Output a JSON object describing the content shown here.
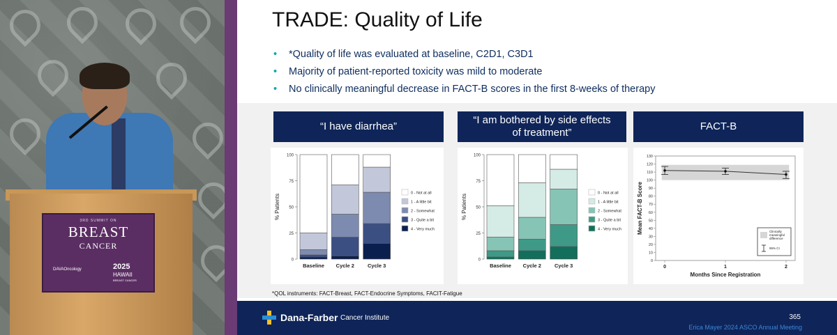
{
  "podium_sign": {
    "small": "3RD SUMMIT ON",
    "line1": "BREAST",
    "line2": "CANCER",
    "sponsor": "DAVAOncology",
    "year": "2025",
    "place": "HAWAII",
    "tag": "BREAST CANCER"
  },
  "slide": {
    "title": "TRADE: Quality of Life",
    "bullets": [
      "*Quality of life was evaluated at baseline, C2D1, C3D1",
      "Majority of patient-reported toxicity was mild to moderate",
      "No clinically meaningful decrease in FACT-B scores in the first 8-weeks of therapy"
    ],
    "footnote": "*QOL instruments: FACT-Breast, FACT-Endocrine Symptoms, FACIT-Fatigue",
    "footer": {
      "brand": "Dana-Farber",
      "brand_sub": "Cancer Institute",
      "page": "365",
      "credit": "Erica Mayer 2024 ASCO Annual Meeting"
    }
  },
  "chart_data": [
    {
      "type": "bar",
      "stacked": true,
      "panel_title": "“I have diarrhea”",
      "categories": [
        "Baseline",
        "Cycle 2",
        "Cycle 3"
      ],
      "ylabel": "% Patients",
      "ylim": [
        0,
        100
      ],
      "yticks": [
        0,
        25,
        50,
        75,
        100
      ],
      "series": [
        {
          "name": "4 - Very much",
          "color": "#0b1f4f",
          "values": [
            2,
            3,
            15
          ]
        },
        {
          "name": "3 - Quite a bit",
          "color": "#3b4f82",
          "values": [
            2,
            18,
            19
          ]
        },
        {
          "name": "2 - Somewhat",
          "color": "#7e8bb0",
          "values": [
            5,
            22,
            30
          ]
        },
        {
          "name": "1 - A little bit",
          "color": "#c2c8da",
          "values": [
            16,
            28,
            24
          ]
        },
        {
          "name": "0 - Not at all",
          "color": "#ffffff",
          "values": [
            75,
            29,
            12
          ]
        }
      ],
      "legend": "right"
    },
    {
      "type": "bar",
      "stacked": true,
      "panel_title": "“I am bothered by side effects of treatment”",
      "categories": [
        "Baseline",
        "Cycle 2",
        "Cycle 3"
      ],
      "ylabel": "% Patients",
      "ylim": [
        0,
        100
      ],
      "yticks": [
        0,
        25,
        50,
        75,
        100
      ],
      "series": [
        {
          "name": "4 - Very much",
          "color": "#136e5c",
          "values": [
            2,
            8,
            12
          ]
        },
        {
          "name": "3 - Quite a bit",
          "color": "#3e9a86",
          "values": [
            6,
            11,
            21
          ]
        },
        {
          "name": "2 - Somewhat",
          "color": "#86c4b5",
          "values": [
            13,
            21,
            34
          ]
        },
        {
          "name": "1 - A little bit",
          "color": "#d5ebe5",
          "values": [
            30,
            33,
            19
          ]
        },
        {
          "name": "0 - Not at all",
          "color": "#ffffff",
          "values": [
            49,
            27,
            14
          ]
        }
      ],
      "legend": "right"
    },
    {
      "type": "line",
      "panel_title": "FACT-B",
      "x": [
        0,
        1,
        2
      ],
      "xlabel": "Months Since Registration",
      "ylabel": "Mean FACT-B Score",
      "xticks": [
        0,
        1,
        2
      ],
      "ylim": [
        0,
        130
      ],
      "yticks": [
        0,
        10,
        20,
        30,
        40,
        50,
        60,
        70,
        80,
        90,
        100,
        110,
        120,
        130
      ],
      "series": [
        {
          "values": [
            112,
            111,
            107
          ],
          "ci_low": [
            107,
            107,
            102
          ],
          "ci_high": [
            117,
            115,
            111
          ]
        }
      ],
      "band": [
        100,
        119
      ],
      "legend_items": [
        "Clinically meaningful difference",
        "95% CI"
      ],
      "legend": "bottom-right"
    }
  ]
}
